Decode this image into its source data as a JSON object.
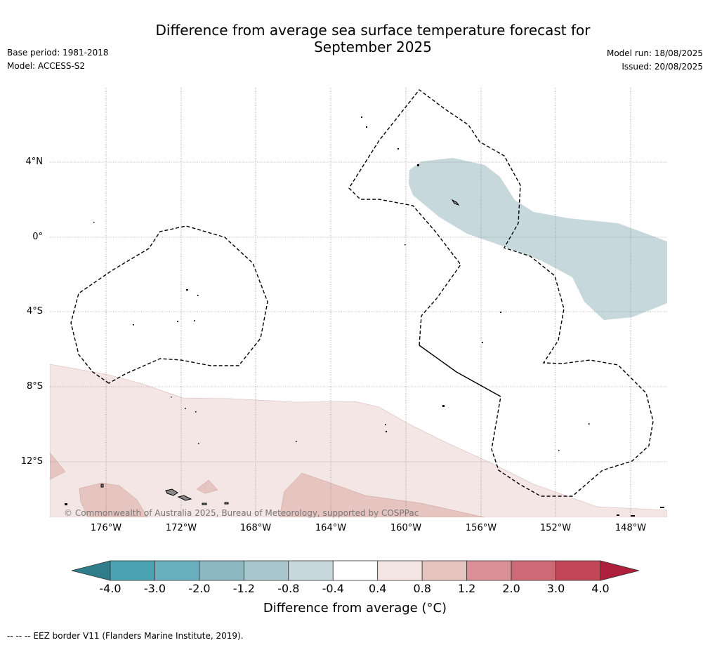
{
  "header": {
    "title_line1": "Difference from average sea surface temperature forecast for",
    "title_line2": "September 2025",
    "base_period": "Base period: 1981-2018",
    "model": "Model: ACCESS-S2",
    "model_run": "Model run: 18/08/2025",
    "issued": "Issued: 20/08/2025"
  },
  "map": {
    "lat_labels": [
      "4°N",
      "0°",
      "4°S",
      "8°S",
      "12°S"
    ],
    "lon_labels": [
      "176°W",
      "172°W",
      "168°W",
      "164°W",
      "160°W",
      "156°W",
      "152°W",
      "148°W"
    ],
    "copyright": "© Commonwealth of Australia 2025, Bureau of Meteorology, supported by COSPPac"
  },
  "colorbar": {
    "ticks": [
      "-4.0",
      "-3.0",
      "-2.0",
      "-1.2",
      "-0.8",
      "-0.4",
      "0.4",
      "0.8",
      "1.2",
      "2.0",
      "3.0",
      "4.0"
    ],
    "colors": [
      "#4aa3b3",
      "#6aafbd",
      "#8db8c3",
      "#a9c6cd",
      "#c7d8dc",
      "#ffffff",
      "#f4e6e4",
      "#e6c4c0",
      "#d99096",
      "#cd6a76",
      "#c24655"
    ],
    "under_color": "#2f7c8a",
    "over_color": "#ad1f3b",
    "label": "Difference from average (°C)"
  },
  "footnote": "--  --  -- EEZ border V11 (Flanders Marine Institute, 2019).",
  "legend_colors": {
    "cool_anomaly": "#c7d8dc",
    "warm_anomaly_light": "#f4e6e4",
    "warm_anomaly_medium": "#e6c4c0"
  }
}
